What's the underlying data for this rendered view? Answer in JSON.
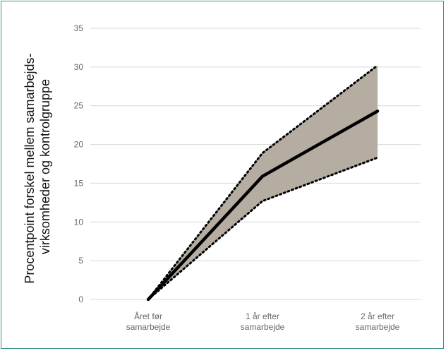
{
  "chart_data": {
    "type": "line",
    "title": "",
    "xlabel": "",
    "ylabel": [
      "Procentpoint forskel mellem samarbejds-",
      "virksomheder og kontrolgruppe"
    ],
    "categories": [
      [
        "Året før",
        "samarbejde"
      ],
      [
        "1 år efter",
        "samarbejde"
      ],
      [
        "2 år efter",
        "samarbejde"
      ]
    ],
    "ylim": [
      0,
      35
    ],
    "yticks": [
      0,
      5,
      10,
      15,
      20,
      25,
      30,
      35
    ],
    "grid": true,
    "legend": "none",
    "series": [
      {
        "role": "estimate",
        "values": [
          0,
          15.9,
          24.3
        ]
      },
      {
        "role": "upper",
        "values": [
          0,
          18.9,
          30.2
        ]
      },
      {
        "role": "lower",
        "values": [
          0,
          12.7,
          18.3
        ]
      }
    ],
    "colors": {
      "band": "#b5ada1",
      "line": "#000000",
      "grid": "#d9d9d9",
      "frame": "#3a8f8a"
    }
  }
}
